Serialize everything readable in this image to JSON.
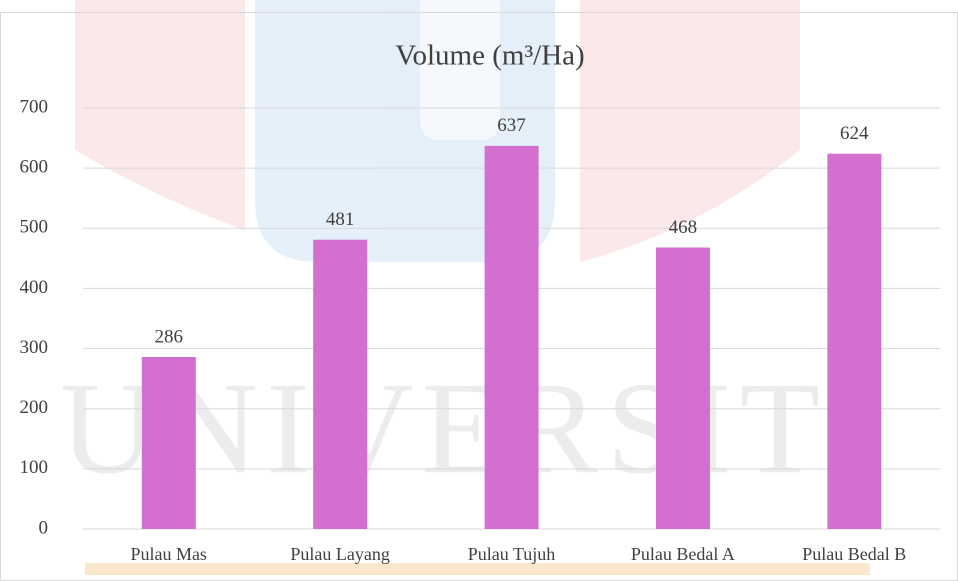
{
  "chart_data": {
    "type": "bar",
    "title": "Volume (m³/Ha)",
    "categories": [
      "Pulau Mas",
      "Pulau Layang",
      "Pulau Tujuh",
      "Pulau Bedal A",
      "Pulau Bedal B"
    ],
    "values": [
      286,
      481,
      637,
      468,
      624
    ],
    "color": "#d36fcf",
    "ylim": [
      0,
      700
    ],
    "yticks": [
      0,
      100,
      200,
      300,
      400,
      500,
      600,
      700
    ],
    "grid": true,
    "watermark": "UNIVERSITI"
  }
}
